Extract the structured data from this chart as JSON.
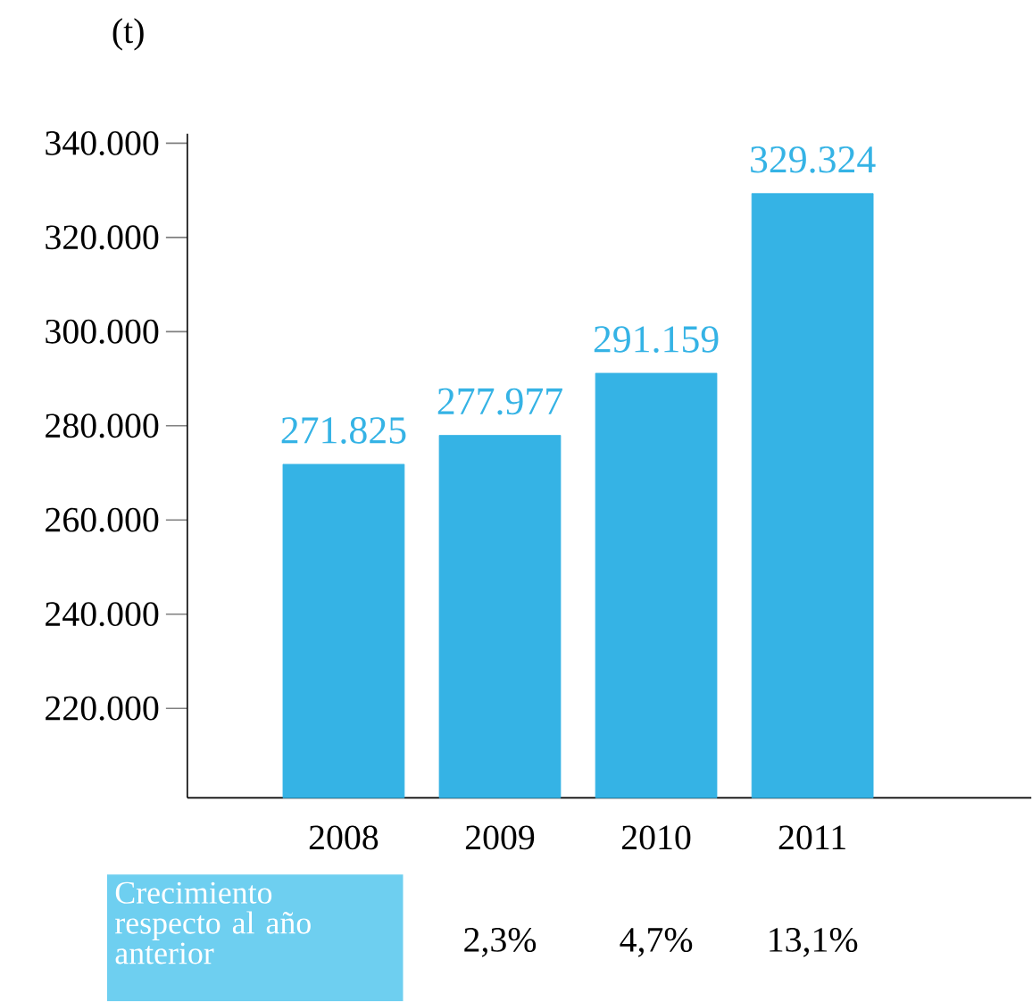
{
  "chart_data": {
    "type": "bar",
    "ylabel": "(t)",
    "categories": [
      "2008",
      "2009",
      "2010",
      "2011"
    ],
    "values": [
      271825,
      277977,
      291159,
      329324
    ],
    "value_labels": [
      "271.825",
      "277.977",
      "291.159",
      "329.324"
    ],
    "color": "#35b3e5",
    "ylim": [
      201000,
      342000
    ],
    "yticks": [
      {
        "value": 220000,
        "label": "220.000"
      },
      {
        "value": 240000,
        "label": "240.000"
      },
      {
        "value": 260000,
        "label": "260.000"
      },
      {
        "value": 280000,
        "label": "280.000"
      },
      {
        "value": 300000,
        "label": "300.000"
      },
      {
        "value": 320000,
        "label": "320.000"
      },
      {
        "value": 340000,
        "label": "340.000"
      }
    ],
    "grid": false,
    "annotations": [
      "Crecimiento respecto al año anterior",
      "2,3%",
      "4,7%",
      "13,1%"
    ]
  }
}
